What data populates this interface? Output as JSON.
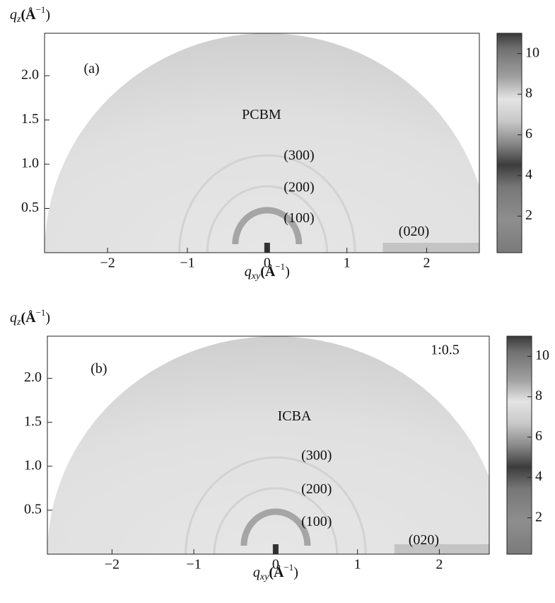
{
  "chart_data": [
    {
      "type": "image",
      "panel_label": "(a)",
      "sample": "PCBM",
      "reflections": [
        "(300)",
        "(200)",
        "(100)",
        "(020)"
      ],
      "xlabel": {
        "symbol": "q",
        "subscript": "xy",
        "unit": "(Å",
        "exponent": "−1",
        "close": ")"
      },
      "ylabel": {
        "symbol": "q",
        "subscript": "z",
        "unit": "(Å",
        "exponent": "−1",
        "close": ")"
      },
      "xlim": [
        -2.79,
        2.66
      ],
      "xticks": [
        {
          "value": -2,
          "label": "−2"
        },
        {
          "value": -1,
          "label": "−1"
        },
        0,
        1,
        2
      ],
      "ylim": [
        0,
        2.48
      ],
      "yticks": [
        0.5,
        {
          "value": 1,
          "label": "1.0"
        },
        1.5,
        {
          "value": 2,
          "label": "2.0"
        }
      ],
      "colorbar": {
        "lim": [
          0.2,
          11
        ],
        "ticks": [
          2,
          4,
          6,
          8,
          10
        ]
      }
    },
    {
      "type": "image",
      "panel_label": "(b)",
      "sample": "ICBA",
      "note": "1:0.5",
      "reflections": [
        "(300)",
        "(200)",
        "(100)",
        "(020)"
      ],
      "xlabel": {
        "symbol": "q",
        "subscript": "xy",
        "unit": "(Å",
        "exponent": "−1",
        "close": ")"
      },
      "ylabel": {
        "symbol": "q",
        "subscript": "z",
        "unit": "(Å",
        "exponent": "−1",
        "close": ")"
      },
      "xlim": [
        -2.79,
        2.61
      ],
      "xticks": [
        {
          "value": -2,
          "label": "−2"
        },
        {
          "value": -1,
          "label": "−1"
        },
        0,
        1,
        2
      ],
      "ylim": [
        0,
        2.48
      ],
      "yticks": [
        0.5,
        {
          "value": 1,
          "label": "1.0"
        },
        1.5,
        {
          "value": 2,
          "label": "2.0"
        }
      ],
      "colorbar": {
        "lim": [
          0.2,
          11
        ],
        "ticks": [
          2,
          4,
          6,
          8,
          10
        ]
      }
    }
  ]
}
